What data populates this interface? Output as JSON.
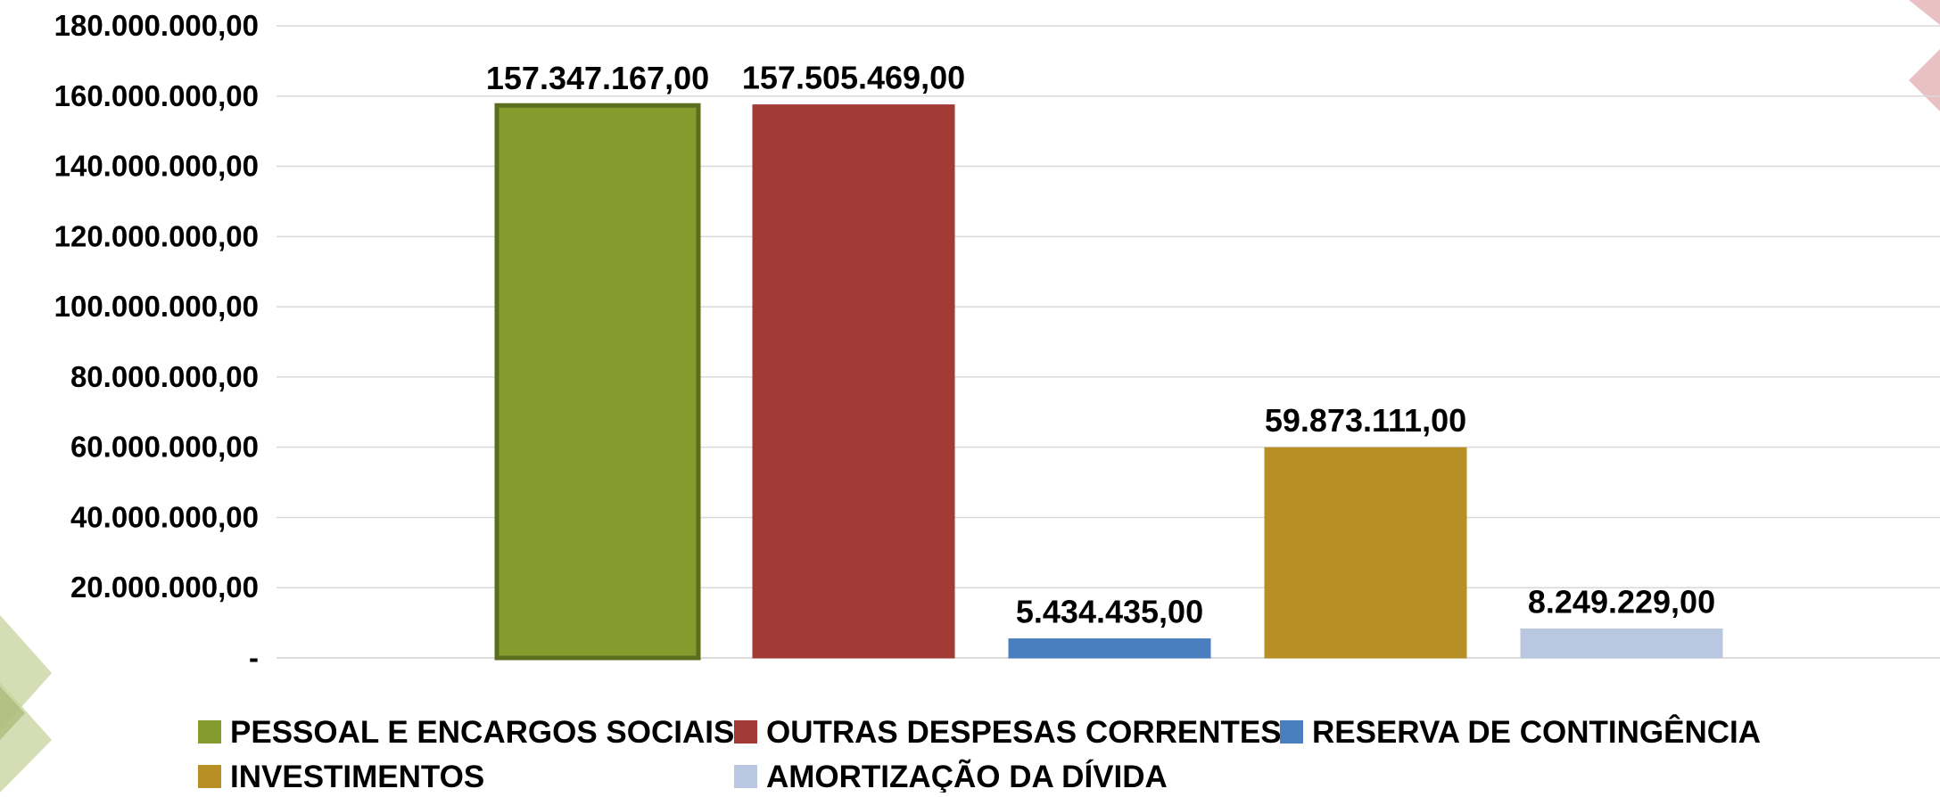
{
  "chart_data": {
    "type": "bar",
    "title": "",
    "xlabel": "",
    "ylabel": "",
    "ylim": [
      0,
      180000000
    ],
    "yticks": [
      0,
      20000000,
      40000000,
      60000000,
      80000000,
      100000000,
      120000000,
      140000000,
      160000000,
      180000000
    ],
    "ytick_labels": [
      "-",
      "20.000.000,00",
      "40.000.000,00",
      "60.000.000,00",
      "80.000.000,00",
      "100.000.000,00",
      "120.000.000,00",
      "140.000.000,00",
      "160.000.000,00",
      "180.000.000,00"
    ],
    "grid": true,
    "legend_position": "bottom",
    "categories": [
      "PESSOAL E ENCARGOS SOCIAIS",
      "OUTRAS DESPESAS CORRENTES",
      "RESERVA DE CONTINGÊNCIA",
      "INVESTIMENTOS",
      "AMORTIZAÇÃO DA DÍVIDA"
    ],
    "values": [
      157347167,
      157505469,
      5434435,
      59873111,
      8249229
    ],
    "value_labels": [
      "157.347.167,00",
      "157.505.469,00",
      "5.434.435,00",
      "59.873.111,00",
      "8.249.229,00"
    ],
    "colors": [
      "#859b2e",
      "#a23b36",
      "#4a7fbf",
      "#b78f24",
      "#b9c7e0"
    ],
    "border_colors": [
      "#5a6e1d",
      "#a23b36",
      "#4a7fbf",
      "#b78f24",
      "#b9c7e0"
    ]
  },
  "decoration": {
    "left_diamond_color": "#c9d4a0",
    "right_diamond_color": "#e3b1b4"
  }
}
